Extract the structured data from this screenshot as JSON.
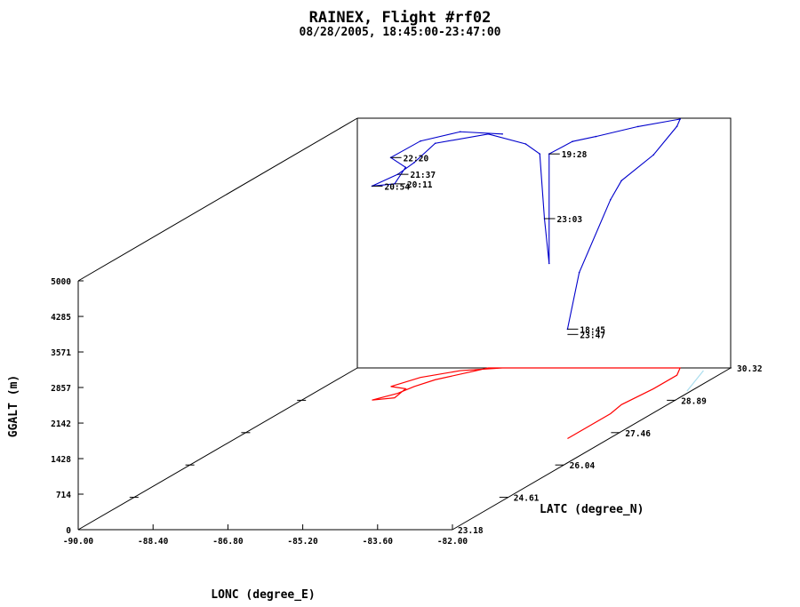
{
  "chart_data": {
    "type": "line3d",
    "title": "RAINEX, Flight #rf02",
    "subtitle": "08/28/2005, 18:45:00-23:47:00",
    "xlabel": "LONC (degree_E)",
    "ylabel": "LATC (degree_N)",
    "zlabel": "GGALT (m)",
    "xlim": [
      -90.0,
      -82.0
    ],
    "ylim": [
      23.18,
      30.32
    ],
    "zlim": [
      0,
      5000
    ],
    "x_ticks": [
      "-90.00",
      "-88.40",
      "-86.80",
      "-85.20",
      "-83.60",
      "-82.00"
    ],
    "y_ticks": [
      "23.18",
      "24.61",
      "26.04",
      "27.46",
      "28.89",
      "30.32"
    ],
    "z_ticks": [
      "0",
      "714",
      "1428",
      "2142",
      "2857",
      "3571",
      "4285",
      "5000"
    ],
    "grid": false,
    "series": [
      {
        "color": "#0000cc",
        "points": [
          [
            -82.9,
            27.2,
            2200
          ],
          [
            -82.9,
            27.5,
            3200
          ],
          [
            -82.9,
            28.3,
            4300
          ],
          [
            -83.0,
            28.7,
            4500
          ],
          [
            -82.9,
            29.4,
            4700
          ],
          [
            -82.9,
            30.0,
            5000
          ],
          [
            -83.1,
            30.32,
            5000
          ],
          [
            -84.0,
            30.32,
            4850
          ],
          [
            -84.9,
            30.32,
            4650
          ],
          [
            -85.4,
            30.32,
            4550
          ],
          [
            -85.9,
            30.32,
            4300
          ],
          [
            -85.9,
            30.32,
            3000
          ],
          [
            -85.9,
            30.32,
            2100
          ],
          [
            -86.0,
            30.32,
            3000
          ],
          [
            -86.1,
            30.32,
            4300
          ],
          [
            -86.4,
            30.32,
            4500
          ],
          [
            -87.2,
            30.32,
            4700
          ],
          [
            -87.9,
            29.8,
            4750
          ],
          [
            -88.1,
            29.5,
            4500
          ],
          [
            -88.2,
            29.2,
            4400
          ],
          [
            -88.5,
            28.9,
            4300
          ],
          [
            -88.1,
            29.0,
            4300
          ],
          [
            -88.2,
            29.4,
            4450
          ],
          [
            -88.6,
            29.5,
            4600
          ],
          [
            -88.3,
            29.9,
            4750
          ],
          [
            -87.7,
            30.2,
            4800
          ],
          [
            -86.9,
            30.32,
            4700
          ]
        ]
      }
    ],
    "time_labels": [
      "22:20",
      "19:28",
      "23:03",
      "21:37",
      "20:54",
      "20:11",
      "18:45",
      "23:47"
    ],
    "ground_track_colors": [
      "#ff0000",
      "#aaddee"
    ]
  }
}
